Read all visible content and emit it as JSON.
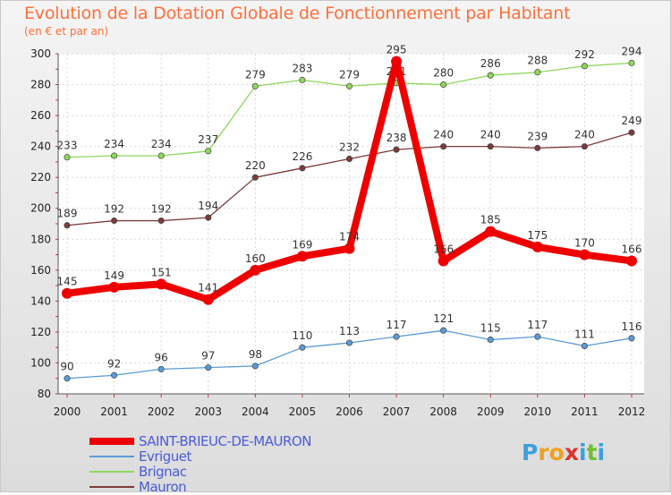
{
  "chart_data": {
    "type": "line",
    "title": "Evolution de la Dotation Globale de Fonctionnement par Habitant",
    "subtitle": "(en € et par an)",
    "xlabel": "",
    "ylabel": "",
    "x": [
      "2000",
      "2001",
      "2002",
      "2003",
      "2004",
      "2005",
      "2006",
      "2007",
      "2008",
      "2009",
      "2010",
      "2011",
      "2012"
    ],
    "ylim": [
      80,
      300
    ],
    "yticks": [
      80,
      100,
      120,
      140,
      160,
      180,
      200,
      220,
      240,
      260,
      280,
      300
    ],
    "grid": true,
    "legend_position": "bottom-left",
    "series": [
      {
        "name": "SAINT-BRIEUC-DE-MAURON",
        "color": "#ee0000",
        "values": [
          145,
          149,
          151,
          141,
          160,
          169,
          174,
          295,
          166,
          185,
          175,
          170,
          166
        ]
      },
      {
        "name": "Evriguet",
        "color": "#5b9bd5",
        "values": [
          90,
          92,
          96,
          97,
          98,
          110,
          113,
          117,
          121,
          115,
          117,
          111,
          116
        ]
      },
      {
        "name": "Brignac",
        "color": "#8fd65c",
        "values": [
          233,
          234,
          234,
          237,
          279,
          283,
          279,
          281,
          280,
          286,
          288,
          292,
          294
        ]
      },
      {
        "name": "Mauron",
        "color": "#7a3b3b",
        "values": [
          189,
          192,
          192,
          194,
          220,
          226,
          232,
          238,
          240,
          240,
          239,
          240,
          249
        ]
      }
    ]
  },
  "logo": {
    "text": "Proxiti",
    "letters": [
      "P",
      "r",
      "o",
      "x",
      "i",
      "t",
      "i"
    ],
    "colors": [
      "#3aa0e0",
      "#f0a020",
      "#f0a020",
      "#e03030",
      "#3aa0e0",
      "#70c030",
      "#3aa0e0"
    ]
  }
}
